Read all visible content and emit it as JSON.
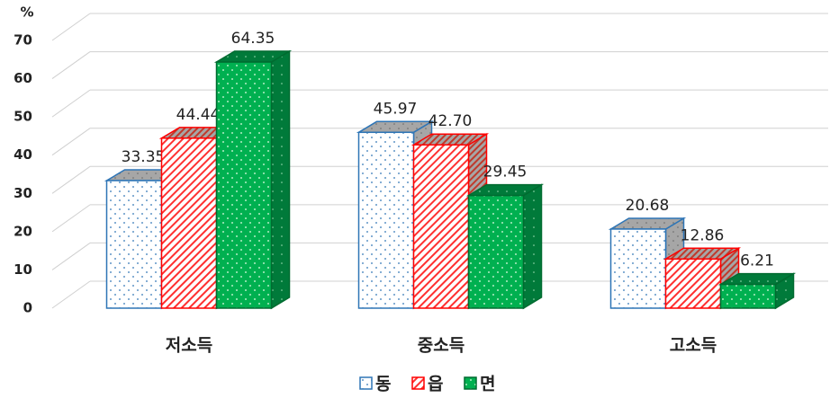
{
  "chart_data": {
    "type": "bar3d",
    "y_label": "%",
    "categories": [
      "저소득",
      "중소득",
      "고소득"
    ],
    "series": [
      {
        "name": "동",
        "color": "#2e75b6",
        "values": [
          33.35,
          45.97,
          20.68
        ],
        "value_labels": [
          "33.35",
          "45.97",
          "20.68"
        ]
      },
      {
        "name": "읍",
        "color": "#ff0000",
        "values": [
          44.44,
          42.7,
          12.86
        ],
        "value_labels": [
          "44.44",
          "42.70",
          "12.86"
        ]
      },
      {
        "name": "면",
        "color": "#00b050",
        "values": [
          64.35,
          29.45,
          6.21
        ],
        "value_labels": [
          "64.35",
          "29.45",
          "6.21"
        ]
      }
    ],
    "ylim": [
      0,
      70
    ],
    "yticks": [
      0,
      10,
      20,
      30,
      40,
      50,
      60,
      70
    ],
    "grid": true,
    "legend": "bottom"
  }
}
